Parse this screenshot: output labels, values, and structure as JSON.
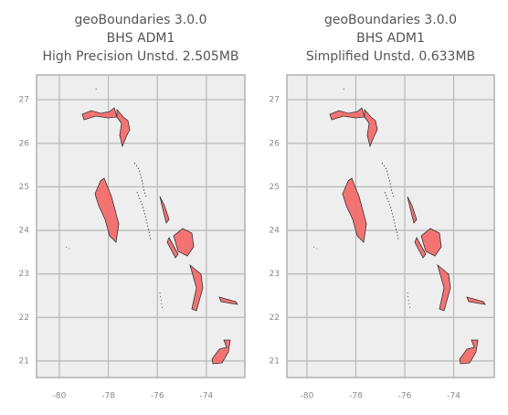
{
  "chart_data": [
    {
      "type": "map",
      "title_lines": [
        "geoBoundaries 3.0.0",
        "BHS ADM1",
        "High Precision Unstd. 2.505MB"
      ],
      "xlim": [
        -80.93,
        -72.43
      ],
      "ylim": [
        20.62,
        27.57
      ],
      "xticks": [
        -80,
        -78,
        -76,
        -74
      ],
      "yticks": [
        21,
        22,
        23,
        24,
        25,
        26,
        27
      ],
      "grid": true,
      "color": "#f26b6b"
    },
    {
      "type": "map",
      "title_lines": [
        "geoBoundaries 3.0.0",
        "BHS ADM1",
        "Simplified Unstd. 0.633MB"
      ],
      "xlim": [
        -80.82,
        -72.34
      ],
      "ylim": [
        20.62,
        27.57
      ],
      "xticks": [
        -80,
        -78,
        -76,
        -74
      ],
      "yticks": [
        21,
        22,
        23,
        24,
        25,
        26,
        27
      ],
      "grid": true,
      "color": "#f26b6b"
    }
  ]
}
